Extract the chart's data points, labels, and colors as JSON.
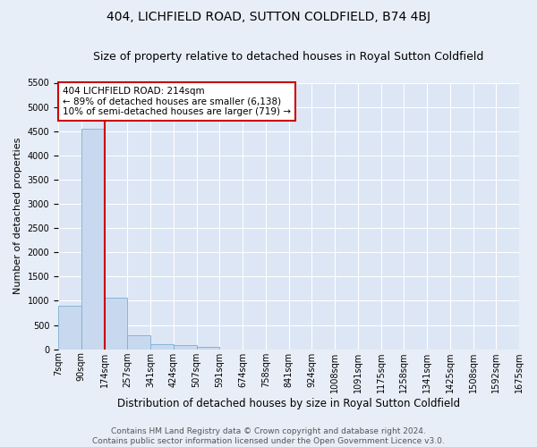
{
  "title": "404, LICHFIELD ROAD, SUTTON COLDFIELD, B74 4BJ",
  "subtitle": "Size of property relative to detached houses in Royal Sutton Coldfield",
  "xlabel": "Distribution of detached houses by size in Royal Sutton Coldfield",
  "ylabel": "Number of detached properties",
  "footer_line1": "Contains HM Land Registry data © Crown copyright and database right 2024.",
  "footer_line2": "Contains public sector information licensed under the Open Government Licence v3.0.",
  "bin_edges": [
    "7sqm",
    "90sqm",
    "174sqm",
    "257sqm",
    "341sqm",
    "424sqm",
    "507sqm",
    "591sqm",
    "674sqm",
    "758sqm",
    "841sqm",
    "924sqm",
    "1008sqm",
    "1091sqm",
    "1175sqm",
    "1258sqm",
    "1341sqm",
    "1425sqm",
    "1508sqm",
    "1592sqm",
    "1675sqm"
  ],
  "bar_values": [
    900,
    4550,
    1060,
    280,
    100,
    80,
    50,
    0,
    0,
    0,
    0,
    0,
    0,
    0,
    0,
    0,
    0,
    0,
    0,
    0
  ],
  "bar_color": "#c8d9ef",
  "bar_edge_color": "#7aafd4",
  "annotation_line1": "404 LICHFIELD ROAD: 214sqm",
  "annotation_line2": "← 89% of detached houses are smaller (6,138)",
  "annotation_line3": "10% of semi-detached houses are larger (719) →",
  "red_line_color": "#cc0000",
  "annotation_box_edge": "#cc0000",
  "red_line_bin_index": 2,
  "ylim": [
    0,
    5500
  ],
  "yticks": [
    0,
    500,
    1000,
    1500,
    2000,
    2500,
    3000,
    3500,
    4000,
    4500,
    5000,
    5500
  ],
  "background_color": "#e8eef7",
  "axes_bg_color": "#dce6f5",
  "grid_color": "#ffffff",
  "title_fontsize": 10,
  "subtitle_fontsize": 9,
  "xlabel_fontsize": 8.5,
  "ylabel_fontsize": 8,
  "tick_fontsize": 7,
  "footer_fontsize": 6.5,
  "annotation_fontsize": 7.5
}
